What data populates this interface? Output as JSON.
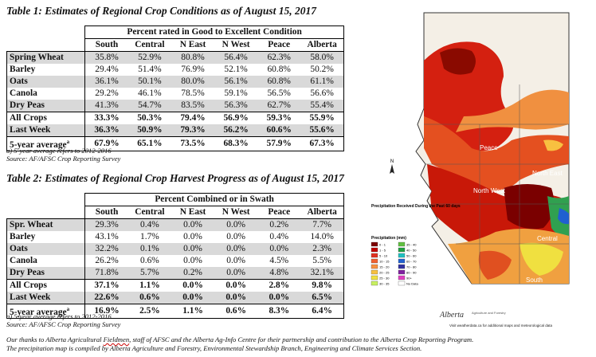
{
  "table1": {
    "title": "Table 1: Estimates of Regional Crop Conditions as of August 15, 2017",
    "group_header": "Percent rated in Good to Excellent Condition",
    "columns": [
      "South",
      "Central",
      "N East",
      "N West",
      "Peace",
      "Alberta"
    ],
    "rows": [
      {
        "label": "Spring Wheat",
        "values": [
          "35.8%",
          "52.9%",
          "80.8%",
          "56.4%",
          "62.3%",
          "58.0%"
        ]
      },
      {
        "label": "Barley",
        "values": [
          "29.4%",
          "51.4%",
          "76.9%",
          "52.1%",
          "60.8%",
          "50.2%"
        ]
      },
      {
        "label": "Oats",
        "values": [
          "36.1%",
          "50.1%",
          "80.0%",
          "56.1%",
          "60.8%",
          "61.1%"
        ]
      },
      {
        "label": "Canola",
        "values": [
          "29.2%",
          "46.1%",
          "78.5%",
          "59.1%",
          "56.5%",
          "56.6%"
        ]
      },
      {
        "label": "Dry Peas",
        "values": [
          "41.3%",
          "54.7%",
          "83.5%",
          "56.3%",
          "62.7%",
          "55.4%"
        ]
      }
    ],
    "all_crops": {
      "label": "All Crops",
      "values": [
        "33.3%",
        "50.3%",
        "79.4%",
        "56.9%",
        "59.3%",
        "55.9%"
      ]
    },
    "last_week": {
      "label": "Last Week",
      "values": [
        "36.3%",
        "50.9%",
        "79.3%",
        "56.2%",
        "60.6%",
        "55.6%"
      ]
    },
    "five_year": {
      "label": "5-year average",
      "sup": "a",
      "values": [
        "67.9%",
        "65.1%",
        "73.5%",
        "68.3%",
        "57.9%",
        "67.3%"
      ]
    },
    "note_a": "a) 5-year average refers to 2012-2016",
    "source": "Source: AF/AFSC Crop Reporting Survey"
  },
  "table2": {
    "title": "Table 2: Estimates of Regional Crop Harvest Progress as of August 15, 2017",
    "group_header": "Percent Combined or in Swath",
    "columns": [
      "South",
      "Central",
      "N East",
      "N West",
      "Peace",
      "Alberta"
    ],
    "rows": [
      {
        "label": "Spr. Wheat",
        "values": [
          "29.3%",
          "0.4%",
          "0.0%",
          "0.0%",
          "0.2%",
          "7.7%"
        ]
      },
      {
        "label": "Barley",
        "values": [
          "43.1%",
          "1.7%",
          "0.0%",
          "0.0%",
          "0.4%",
          "14.0%"
        ]
      },
      {
        "label": "Oats",
        "values": [
          "32.2%",
          "0.1%",
          "0.0%",
          "0.0%",
          "0.0%",
          "2.3%"
        ]
      },
      {
        "label": "Canola",
        "values": [
          "26.2%",
          "0.6%",
          "0.0%",
          "0.0%",
          "4.5%",
          "5.5%"
        ]
      },
      {
        "label": "Dry Peas",
        "values": [
          "71.8%",
          "5.7%",
          "0.2%",
          "0.0%",
          "4.8%",
          "32.1%"
        ]
      }
    ],
    "all_crops": {
      "label": "All Crops",
      "values": [
        "37.1%",
        "1.1%",
        "0.0%",
        "0.0%",
        "2.8%",
        "9.8%"
      ]
    },
    "last_week": {
      "label": "Last Week",
      "values": [
        "22.6%",
        "0.6%",
        "0.0%",
        "0.0%",
        "0.0%",
        "6.5%"
      ]
    },
    "five_year": {
      "label": "5-year average",
      "sup": "a",
      "values": [
        "16.9%",
        "2.5%",
        "1.1%",
        "0.6%",
        "8.3%",
        "6.4%"
      ]
    },
    "note_a": "a) 5-year average refers to 2012-2016",
    "source": "Source: AF/AFSC Crop Reporting Survey"
  },
  "footer": {
    "line1_pre": "Our thanks to Alberta Agricultural ",
    "line1_fieldmen": "Fieldmen",
    "line1_post": ", staff of AFSC and the Alberta Ag-Info Centre for their partnership and contribution to the Alberta Crop Reporting Program.",
    "line2": "The precipitation map is compiled by Alberta Agriculture and Forestry, Environmental Stewardship Branch, Engineering and Climate Services Section."
  },
  "map": {
    "region_labels": [
      "Peace",
      "North East",
      "North West",
      "Central",
      "South"
    ],
    "legend_title": "Precipitation Received During the Past 60 days",
    "legend_heading": "Precipitation (mm)",
    "legend_items": [
      {
        "label": "0 - 1",
        "color": "#7a0000"
      },
      {
        "label": "1 - 5",
        "color": "#c00000"
      },
      {
        "label": "5 - 10",
        "color": "#e03020"
      },
      {
        "label": "10 - 15",
        "color": "#f06030"
      },
      {
        "label": "15 - 20",
        "color": "#f89040"
      },
      {
        "label": "20 - 25",
        "color": "#f8c040"
      },
      {
        "label": "25 - 30",
        "color": "#f0e040"
      },
      {
        "label": "30 - 35",
        "color": "#c8f060"
      },
      {
        "label": "35 - 40",
        "color": "#60c040"
      },
      {
        "label": "40 - 50",
        "color": "#20a040"
      },
      {
        "label": "50 - 60",
        "color": "#20c0c0"
      },
      {
        "label": "60 - 70",
        "color": "#2060d0"
      },
      {
        "label": "70 - 80",
        "color": "#3030a0"
      },
      {
        "label": "80 - 90",
        "color": "#8020a0"
      },
      {
        "label": "90+",
        "color": "#e040c0"
      },
      {
        "label": "No Data",
        "color": "#ffffff"
      }
    ],
    "logo_text": "Alberta",
    "logo_sub": "Agriculture and Forestry",
    "credit": "Visit weatherdata.ca for additional maps and meteorological data"
  }
}
